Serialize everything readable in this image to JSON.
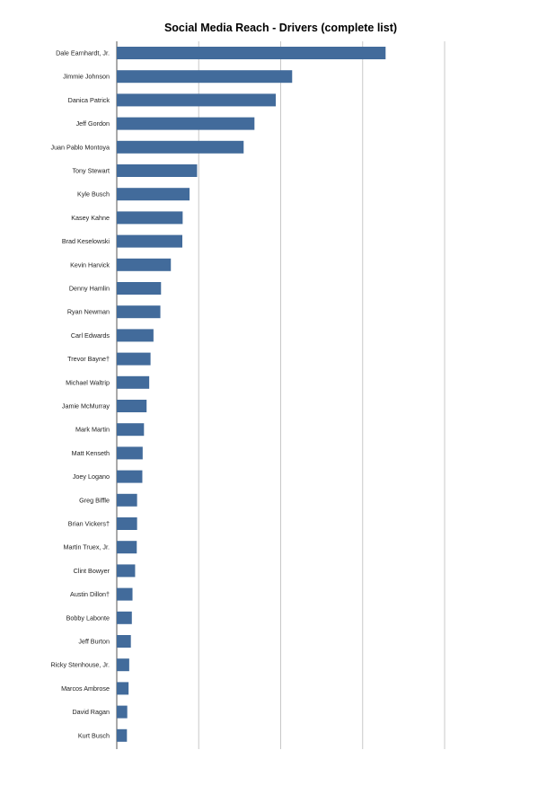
{
  "chart_data": {
    "type": "bar",
    "orientation": "horizontal",
    "title": "Social Media Reach - Drivers (complete list)",
    "xlabel": "",
    "ylabel": "",
    "xlim": [
      0,
      100
    ],
    "grid": true,
    "bar_color": "#426b9b",
    "grid_color": "#c8c8c8",
    "categories": [
      "Dale Earnhardt, Jr.",
      "Jimmie Johnson",
      "Danica Patrick",
      "Jeff Gordon",
      "Juan Pablo Montoya",
      "Tony Stewart",
      "Kyle Busch",
      "Kasey Kahne",
      "Brad Keselowski",
      "Kevin Harvick",
      "Denny Hamlin",
      "Ryan Newman",
      "Carl Edwards",
      "Trevor Bayne†",
      "Michael Waltrip",
      "Jamie McMurray",
      "Mark Martin",
      "Matt Kenseth",
      "Joey Logano",
      "Greg Biffle",
      "Brian Vickers†",
      "Martin Truex, Jr.",
      "Clint Bowyer",
      "Austin Dillon†",
      "Bobby Labonte",
      "Jeff Burton",
      "Ricky Stenhouse, Jr.",
      "Marcos Ambrose",
      "David Ragan",
      "Kurt Busch"
    ],
    "values": [
      82,
      53.5,
      48.5,
      42,
      38.7,
      24.5,
      22.2,
      20.1,
      20,
      16.5,
      13.5,
      13.3,
      11.2,
      10.3,
      9.9,
      9.1,
      8.3,
      7.9,
      7.8,
      6.2,
      6.2,
      6.1,
      5.6,
      4.8,
      4.6,
      4.3,
      3.8,
      3.6,
      3.2,
      3.1
    ]
  }
}
